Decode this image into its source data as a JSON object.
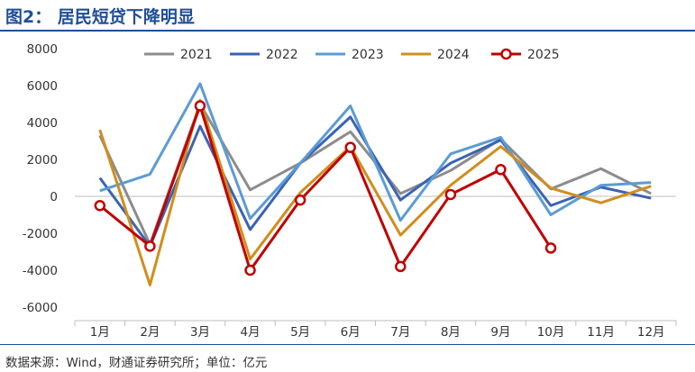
{
  "header": {
    "title": "图2：  居民短贷下降明显"
  },
  "footer": {
    "source": "数据来源：Wind，财通证券研究所；单位：亿元"
  },
  "chart_data": {
    "type": "line",
    "categories": [
      "1月",
      "2月",
      "3月",
      "4月",
      "5月",
      "6月",
      "7月",
      "8月",
      "9月",
      "10月",
      "11月",
      "12月"
    ],
    "ylim": [
      -6000,
      8000
    ],
    "yticks": [
      -6000,
      -4000,
      -2000,
      0,
      2000,
      4000,
      6000,
      8000
    ],
    "ytick_labels": [
      "-6000",
      "-4000",
      "-2000",
      "0",
      "2000",
      "4000",
      "6000",
      "8000"
    ],
    "grid": false,
    "legend_position": "top",
    "series": [
      {
        "name": "2021",
        "color": "#8c8c8c",
        "marker": false,
        "values": [
          3300,
          -2600,
          5000,
          350,
          1800,
          3500,
          150,
          1400,
          3100,
          400,
          1500,
          150
        ]
      },
      {
        "name": "2022",
        "color": "#3b63b4",
        "marker": false,
        "values": [
          1000,
          -2700,
          3800,
          -1800,
          1800,
          4300,
          -200,
          1800,
          3050,
          -500,
          500,
          -100
        ]
      },
      {
        "name": "2023",
        "color": "#5b9bd5",
        "marker": false,
        "values": [
          300,
          1200,
          6100,
          -1200,
          1800,
          4900,
          -1300,
          2300,
          3200,
          -1000,
          600,
          750
        ]
      },
      {
        "name": "2024",
        "color": "#d18d1c",
        "marker": false,
        "values": [
          3600,
          -4800,
          5200,
          -3400,
          200,
          2700,
          -2100,
          600,
          2700,
          450,
          -350,
          550
        ]
      },
      {
        "name": "2025",
        "color": "#c00000",
        "marker": true,
        "values": [
          -500,
          -2700,
          4900,
          -4000,
          -200,
          2650,
          -3800,
          100,
          1450,
          -2800,
          null,
          null
        ]
      }
    ]
  }
}
